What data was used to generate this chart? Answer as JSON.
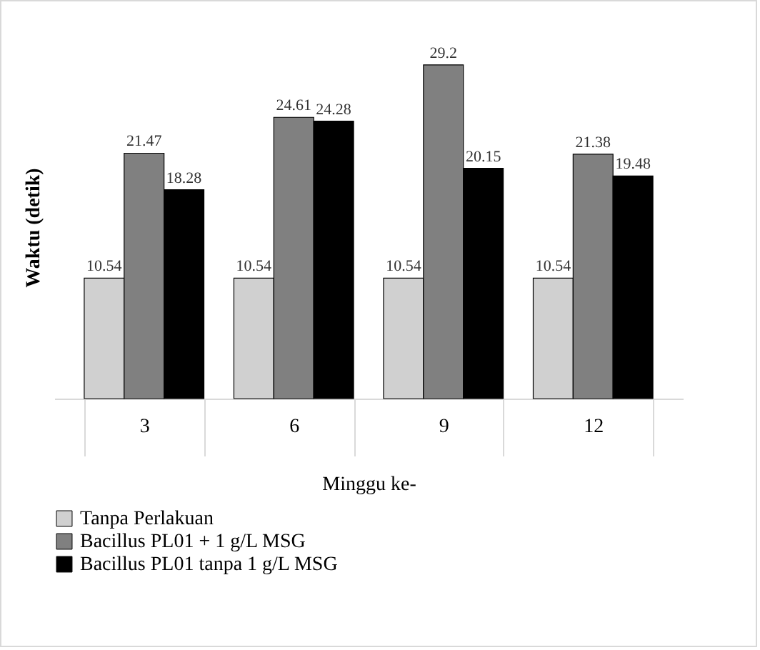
{
  "chart_data": {
    "type": "bar",
    "xlabel": "Minggu ke-",
    "ylabel": "Waktu (detik)",
    "categories": [
      "3",
      "6",
      "9",
      "12"
    ],
    "series": [
      {
        "name": "Tanpa Perlakuan",
        "color": "#d0d0d0",
        "values": [
          10.54,
          10.54,
          10.54,
          10.54
        ]
      },
      {
        "name": "Bacillus PL01 + 1 g/L MSG",
        "color": "#808080",
        "values": [
          21.47,
          24.61,
          29.2,
          21.38
        ]
      },
      {
        "name": "Bacillus PL01 tanpa 1 g/L MSG",
        "color": "#000000",
        "values": [
          18.28,
          24.28,
          20.15,
          19.48
        ]
      }
    ],
    "data_labels": true,
    "legend": "bottom",
    "grid": false,
    "tick_labels": "x"
  }
}
